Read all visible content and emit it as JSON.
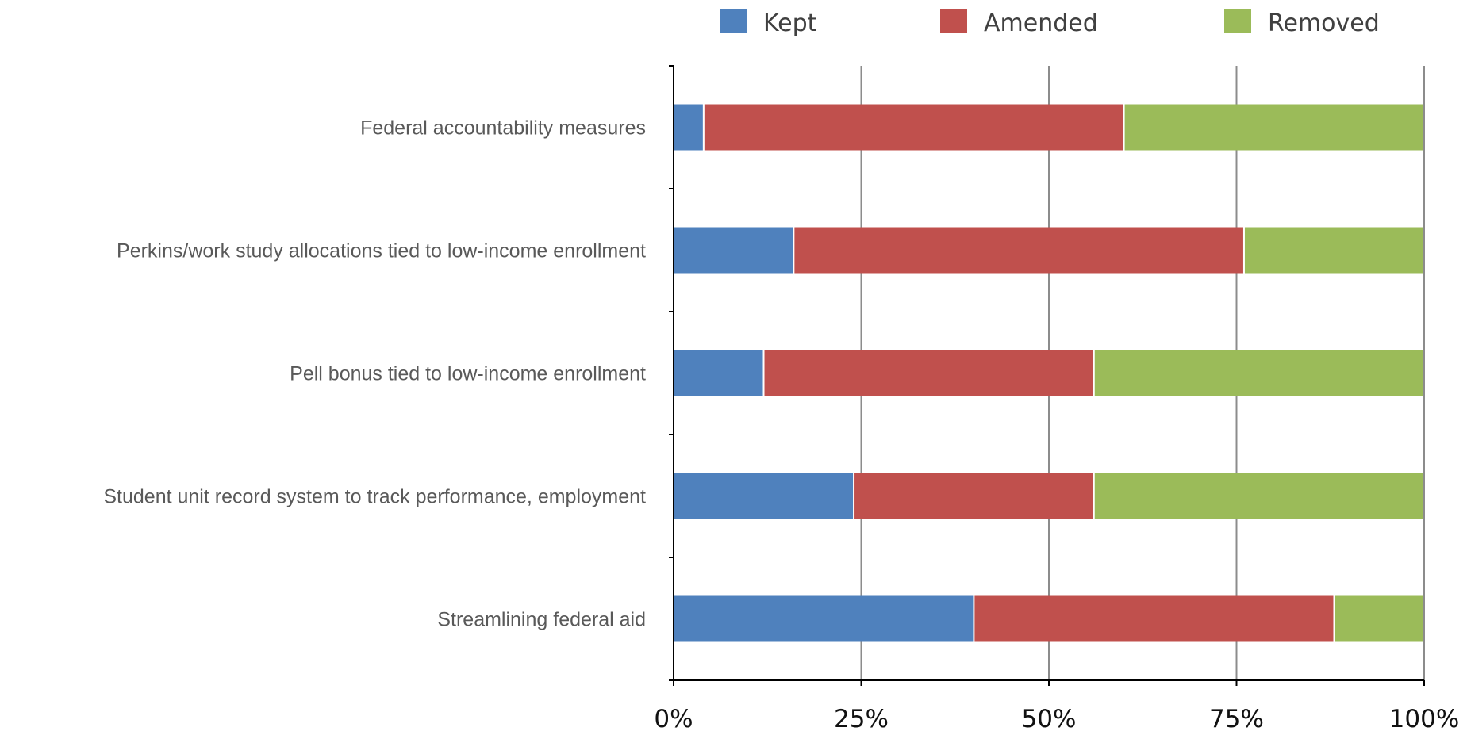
{
  "chart_data": {
    "type": "bar",
    "orientation": "horizontal",
    "stacked": "percent",
    "title": "",
    "xlabel": "",
    "ylabel": "",
    "categories": [
      "Federal accountability measures",
      "Perkins/work study allocations tied to low-income enrollment",
      "Pell bonus tied to low-income enrollment",
      "Student unit record system to track performance, employment",
      "Streamlining federal aid"
    ],
    "series": [
      {
        "name": "Kept",
        "color": "#4F81BD",
        "values": [
          4,
          16,
          12,
          24,
          40
        ]
      },
      {
        "name": "Amended",
        "color": "#C0504D",
        "values": [
          56,
          60,
          44,
          32,
          48
        ]
      },
      {
        "name": "Removed",
        "color": "#9BBB59",
        "values": [
          40,
          24,
          44,
          44,
          12
        ]
      }
    ],
    "xlim": [
      0,
      100
    ],
    "x_ticks": [
      0,
      25,
      50,
      75,
      100
    ],
    "x_tick_labels": [
      "0%",
      "25%",
      "50%",
      "75%",
      "100%"
    ],
    "grid": "vertical",
    "legend": "top"
  }
}
